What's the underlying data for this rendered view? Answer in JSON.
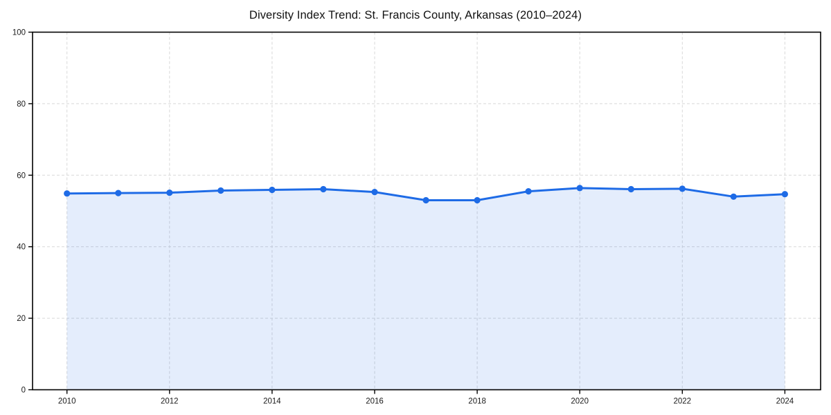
{
  "title": "Diversity Index Trend: St. Francis County, Arkansas (2010–2024)",
  "chart_data": {
    "type": "area",
    "title": "Diversity Index Trend: St. Francis County, Arkansas (2010–2024)",
    "x": [
      2010,
      2011,
      2012,
      2013,
      2014,
      2015,
      2016,
      2017,
      2018,
      2019,
      2020,
      2021,
      2022,
      2023,
      2024
    ],
    "series": [
      {
        "name": "Diversity Index",
        "values": [
          54.9,
          55.0,
          55.1,
          55.7,
          55.9,
          56.1,
          55.3,
          53.0,
          53.0,
          55.5,
          56.4,
          56.1,
          56.2,
          54.0,
          54.7
        ]
      }
    ],
    "xlabel": "",
    "ylabel": "",
    "xticks": [
      2010,
      2012,
      2014,
      2016,
      2018,
      2020,
      2022,
      2024
    ],
    "yticks": [
      0,
      20,
      40,
      60,
      80,
      100
    ],
    "ylim": [
      0,
      100
    ],
    "grid": true,
    "grid_style": "dashed",
    "legend_position": "none",
    "colors": {
      "line": "#1e6be6",
      "marker": "#1e6be6",
      "fill": "#1e6be6",
      "fill_opacity": "0.12",
      "grid": "#d8d8d8",
      "axis": "#000000",
      "tick_text": "#1a1a1a",
      "background": "#ffffff"
    }
  }
}
